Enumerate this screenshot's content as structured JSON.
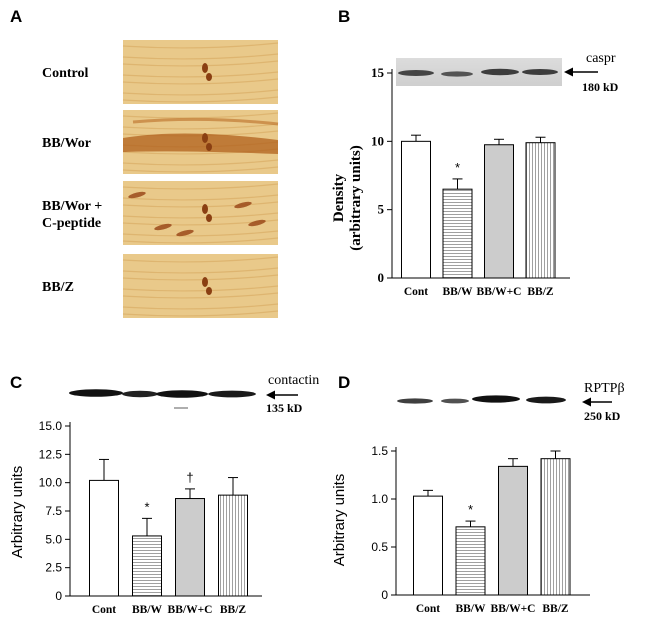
{
  "colors": {
    "bar_fill": "#ffffff",
    "bar_fill_gray": "#cccccc",
    "stroke": "#000000",
    "tissue_bg": "#e9c98a",
    "tissue_stain": "#b5651d"
  },
  "panel_a": {
    "letter": "A",
    "rows": [
      {
        "label_lines": [
          "Control"
        ],
        "stain": "light"
      },
      {
        "label_lines": [
          "BB/Wor"
        ],
        "stain": "dark"
      },
      {
        "label_lines": [
          "BB/Wor +",
          "C-peptide"
        ],
        "stain": "medium"
      },
      {
        "label_lines": [
          "BB/Z"
        ],
        "stain": "light"
      }
    ]
  },
  "panel_b": {
    "letter": "B",
    "blot_label": "caspr",
    "blot_kd": "180 kD",
    "ylabel_lines": [
      "Density",
      "(arbitrary units)"
    ]
  },
  "panel_c": {
    "letter": "C",
    "blot_label": "contactin",
    "blot_kd": "135 kD",
    "ylabel": "Arbitrary units"
  },
  "panel_d": {
    "letter": "D",
    "blot_label": "RPTPβ",
    "blot_kd": "250  kD",
    "ylabel": "Arbitrary units"
  },
  "chart_data": [
    {
      "type": "bar",
      "panel": "B",
      "categories": [
        "Cont",
        "BB/W",
        "BB/W+C",
        "BB/Z"
      ],
      "values": [
        10.0,
        6.5,
        9.75,
        9.9
      ],
      "errors": [
        0.45,
        0.75,
        0.4,
        0.4
      ],
      "ylim": [
        0,
        15
      ],
      "yticks": [
        "0",
        "5",
        "10",
        "15"
      ],
      "ytick_values": [
        0,
        5,
        10,
        15
      ],
      "fills": [
        "white",
        "hlines",
        "gray",
        "vlines"
      ],
      "annotations": [
        "",
        "*",
        "",
        ""
      ]
    },
    {
      "type": "bar",
      "panel": "C",
      "categories": [
        "Cont",
        "BB/W",
        "BB/W+C",
        "BB/Z"
      ],
      "values": [
        10.2,
        5.3,
        8.6,
        8.9
      ],
      "errors": [
        1.85,
        1.55,
        0.85,
        1.55
      ],
      "ylim": [
        0,
        15
      ],
      "yticks": [
        "0",
        "2.5",
        "5.0",
        "7.5",
        "10.0",
        "12.5",
        "15.0"
      ],
      "ytick_values": [
        0,
        2.5,
        5,
        7.5,
        10,
        12.5,
        15
      ],
      "fills": [
        "white",
        "hlines",
        "gray",
        "vlines"
      ],
      "annotations": [
        "",
        "*",
        "†",
        ""
      ]
    },
    {
      "type": "bar",
      "panel": "D",
      "categories": [
        "Cont",
        "BB/W",
        "BB/W+C",
        "BB/Z"
      ],
      "values": [
        1.03,
        0.71,
        1.34,
        1.42
      ],
      "errors": [
        0.06,
        0.06,
        0.08,
        0.08
      ],
      "ylim": [
        0,
        1.5
      ],
      "yticks": [
        "0",
        "0.5",
        "1.0",
        "1.5"
      ],
      "ytick_values": [
        0,
        0.5,
        1.0,
        1.5
      ],
      "fills": [
        "white",
        "hlines",
        "gray",
        "vlines"
      ],
      "annotations": [
        "",
        "*",
        "",
        ""
      ]
    }
  ]
}
